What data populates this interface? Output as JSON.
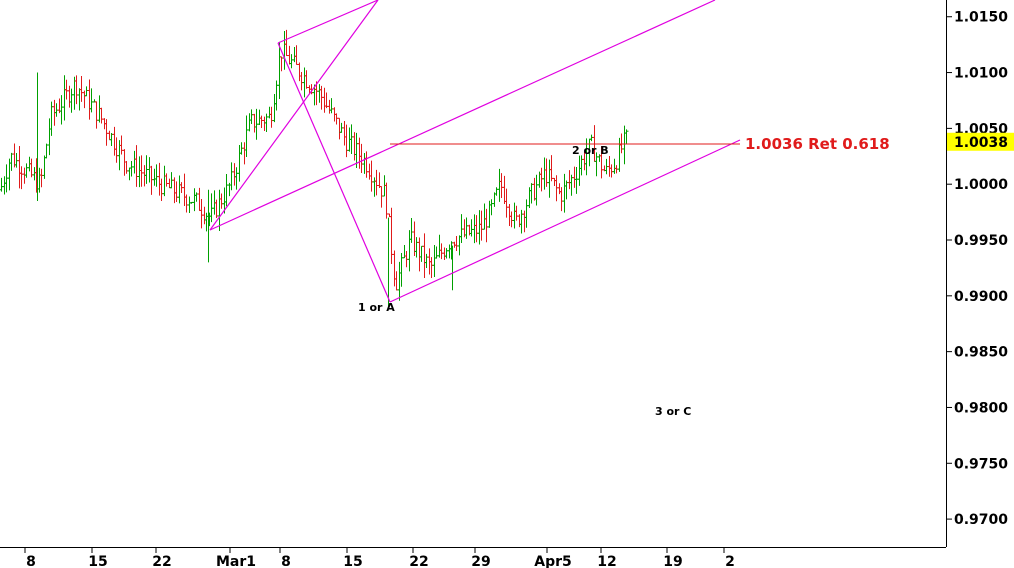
{
  "chart_data": {
    "type": "ohlc",
    "y_ticks": [
      {
        "value": 1.015,
        "label": "1.0150"
      },
      {
        "value": 1.01,
        "label": "1.0100"
      },
      {
        "value": 1.005,
        "label": "1.0050"
      },
      {
        "value": 1.0,
        "label": "1.0000"
      },
      {
        "value": 0.995,
        "label": "0.9950"
      },
      {
        "value": 0.99,
        "label": "0.9900"
      },
      {
        "value": 0.985,
        "label": "0.9850"
      },
      {
        "value": 0.98,
        "label": "0.9800"
      },
      {
        "value": 0.975,
        "label": "0.9750"
      },
      {
        "value": 0.97,
        "label": "0.9700"
      }
    ],
    "ylim": [
      0.9675,
      1.0165
    ],
    "x_ticks": [
      "8",
      "15",
      "22",
      "Mar1",
      "8",
      "15",
      "22",
      "29",
      "Apr5",
      "12",
      "19",
      "2"
    ],
    "current_price": {
      "value": 1.0038,
      "label": "1.0038",
      "color": "#ffff00"
    },
    "retracement": {
      "value": 1.0036,
      "label": "1.0036 Ret 0.618",
      "color": "#e01b1b"
    },
    "wave_labels": [
      {
        "text": "1 or A"
      },
      {
        "text": "2 or B"
      },
      {
        "text": "3 or C"
      }
    ],
    "colors": {
      "up": "#00a000",
      "down": "#e01b1b",
      "channel": "#e000e0"
    }
  }
}
